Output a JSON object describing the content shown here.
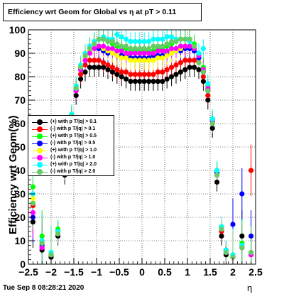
{
  "chart_data": {
    "type": "scatter",
    "title": "Efficiency wrt Geom for Global vs   η at pT > 0.11",
    "ylabel": "Efficiency wrt Geom(%)",
    "xlabel": "η",
    "xlim": [
      -2.5,
      2.5
    ],
    "ylim": [
      0,
      100
    ],
    "x_ticks": [
      "−2.5",
      "−2",
      "−1.5",
      "−1",
      "−0.5",
      "0",
      "0.5",
      "1",
      "1.5",
      "2",
      "2.5"
    ],
    "y_ticks": [
      "0",
      "10",
      "20",
      "30",
      "40",
      "50",
      "60",
      "70",
      "80",
      "90",
      "100"
    ],
    "grid": true,
    "legend_position": "left-middle",
    "series": [
      {
        "name": "(+) with p T/|q| > 0.1",
        "color": "#000000",
        "x": [
          -2.4,
          -2.2,
          -2.0,
          -1.85,
          -1.7,
          -1.55,
          -1.45,
          -1.35,
          -1.25,
          -1.15,
          -1.05,
          -0.95,
          -0.85,
          -0.75,
          -0.65,
          -0.55,
          -0.45,
          -0.35,
          -0.25,
          -0.15,
          -0.05,
          0.05,
          0.15,
          0.25,
          0.35,
          0.45,
          0.55,
          0.65,
          0.75,
          0.85,
          0.95,
          1.05,
          1.15,
          1.25,
          1.35,
          1.45,
          1.55,
          1.65,
          1.75,
          1.85,
          2.0,
          2.2,
          2.4
        ],
        "y": [
          18,
          6,
          3,
          12,
          38,
          60,
          72,
          79,
          82,
          84,
          84,
          84,
          84,
          83,
          82,
          81,
          80,
          79,
          78,
          78,
          78,
          78,
          78,
          78,
          78,
          78,
          79,
          80,
          81,
          82,
          83,
          84,
          84,
          83,
          78,
          70,
          58,
          35,
          12,
          4,
          3,
          12,
          4
        ]
      },
      {
        "name": "(-) with p T/|q| > 0.1",
        "color": "#ff0000",
        "x": [
          -2.4,
          -2.2,
          -2.0,
          -1.85,
          -1.7,
          -1.55,
          -1.45,
          -1.35,
          -1.25,
          -1.15,
          -1.05,
          -0.95,
          -0.85,
          -0.75,
          -0.65,
          -0.55,
          -0.45,
          -0.35,
          -0.25,
          -0.15,
          -0.05,
          0.05,
          0.15,
          0.25,
          0.35,
          0.45,
          0.55,
          0.65,
          0.75,
          0.85,
          0.95,
          1.05,
          1.15,
          1.25,
          1.35,
          1.45,
          1.55,
          1.65,
          1.75,
          1.85,
          2.0,
          2.2,
          2.4
        ],
        "y": [
          25,
          10,
          4,
          14,
          40,
          62,
          74,
          81,
          85,
          87,
          87,
          87,
          86,
          85,
          84,
          83,
          82,
          82,
          81,
          81,
          81,
          81,
          81,
          81,
          82,
          82,
          83,
          84,
          85,
          86,
          87,
          87,
          87,
          86,
          80,
          72,
          60,
          38,
          14,
          5,
          4,
          8,
          40
        ]
      },
      {
        "name": "(+) with p T/|q| > 0.5",
        "color": "#00ff00",
        "x": [
          -2.4,
          -2.2,
          -2.0,
          -1.85,
          -1.7,
          -1.55,
          -1.45,
          -1.35,
          -1.25,
          -1.15,
          -1.05,
          -0.95,
          -0.85,
          -0.75,
          -0.65,
          -0.55,
          -0.45,
          -0.35,
          -0.25,
          -0.15,
          -0.05,
          0.05,
          0.15,
          0.25,
          0.35,
          0.45,
          0.55,
          0.65,
          0.75,
          0.85,
          0.95,
          1.05,
          1.15,
          1.25,
          1.35,
          1.45,
          1.55,
          1.65,
          1.75,
          1.85,
          2.0,
          2.2,
          2.4
        ],
        "y": [
          33,
          12,
          5,
          15,
          42,
          64,
          76,
          84,
          89,
          93,
          95,
          96,
          96,
          95,
          94,
          93,
          92,
          92,
          91,
          91,
          91,
          91,
          91,
          91,
          92,
          92,
          93,
          94,
          95,
          96,
          96,
          96,
          94,
          90,
          84,
          76,
          62,
          40,
          16,
          6,
          4,
          9,
          5
        ]
      },
      {
        "name": "(-) with p T/|q| > 0.5",
        "color": "#0000ff",
        "x": [
          -2.4,
          -2.2,
          -2.0,
          -1.85,
          -1.7,
          -1.55,
          -1.45,
          -1.35,
          -1.25,
          -1.15,
          -1.05,
          -0.95,
          -0.85,
          -0.75,
          -0.65,
          -0.55,
          -0.45,
          -0.35,
          -0.25,
          -0.15,
          -0.05,
          0.05,
          0.15,
          0.25,
          0.35,
          0.45,
          0.55,
          0.65,
          0.75,
          0.85,
          0.95,
          1.05,
          1.15,
          1.25,
          1.35,
          1.45,
          1.55,
          1.65,
          1.75,
          1.85,
          2.0,
          2.2,
          2.4
        ],
        "y": [
          20,
          8,
          4,
          14,
          41,
          63,
          75,
          83,
          88,
          91,
          92,
          92,
          91,
          90,
          90,
          89,
          89,
          89,
          88,
          88,
          88,
          88,
          88,
          89,
          89,
          89,
          90,
          90,
          91,
          91,
          92,
          92,
          91,
          88,
          82,
          74,
          61,
          39,
          15,
          6,
          17,
          30,
          12
        ]
      },
      {
        "name": "(+) with p T/|q| > 1.0",
        "color": "#ffff00",
        "x": [
          -2.4,
          -2.2,
          -2.0,
          -1.85,
          -1.7,
          -1.55,
          -1.45,
          -1.35,
          -1.25,
          -1.15,
          -1.05,
          -0.95,
          -0.85,
          -0.75,
          -0.65,
          -0.55,
          -0.45,
          -0.35,
          -0.25,
          -0.15,
          -0.05,
          0.05,
          0.15,
          0.25,
          0.35,
          0.45,
          0.55,
          0.65,
          0.75,
          0.85,
          0.95,
          1.05,
          1.15,
          1.25,
          1.35,
          1.45,
          1.55,
          1.65,
          1.75,
          1.85,
          2.0,
          2.2,
          2.4
        ],
        "y": [
          28,
          9,
          4,
          13,
          40,
          63,
          75,
          84,
          88,
          91,
          92,
          93,
          92,
          91,
          90,
          89,
          88,
          88,
          87,
          87,
          87,
          87,
          87,
          87,
          88,
          88,
          89,
          90,
          91,
          92,
          93,
          93,
          92,
          89,
          83,
          75,
          61,
          38,
          15,
          5,
          4,
          7,
          4
        ]
      },
      {
        "name": "(-) with p T/|q| > 1.0",
        "color": "#ff00ff",
        "x": [
          -2.4,
          -2.2,
          -2.0,
          -1.85,
          -1.7,
          -1.55,
          -1.45,
          -1.35,
          -1.25,
          -1.15,
          -1.05,
          -0.95,
          -0.85,
          -0.75,
          -0.65,
          -0.55,
          -0.45,
          -0.35,
          -0.25,
          -0.15,
          -0.05,
          0.05,
          0.15,
          0.25,
          0.35,
          0.45,
          0.55,
          0.65,
          0.75,
          0.85,
          0.95,
          1.05,
          1.15,
          1.25,
          1.35,
          1.45,
          1.55,
          1.65,
          1.75,
          1.85,
          2.0,
          2.2,
          2.4
        ],
        "y": [
          22,
          7,
          4,
          13,
          40,
          62,
          74,
          83,
          87,
          90,
          92,
          93,
          93,
          92,
          92,
          91,
          91,
          90,
          90,
          90,
          90,
          90,
          90,
          90,
          91,
          91,
          91,
          92,
          92,
          93,
          93,
          93,
          92,
          89,
          83,
          75,
          61,
          38,
          15,
          5,
          3,
          7,
          4
        ]
      },
      {
        "name": "(+) with p T/|q| > 2.0",
        "color": "#00ffff",
        "x": [
          -2.4,
          -2.2,
          -2.0,
          -1.85,
          -1.7,
          -1.55,
          -1.45,
          -1.35,
          -1.25,
          -1.15,
          -1.05,
          -0.95,
          -0.85,
          -0.75,
          -0.65,
          -0.55,
          -0.45,
          -0.35,
          -0.25,
          -0.15,
          -0.05,
          0.05,
          0.15,
          0.25,
          0.35,
          0.45,
          0.55,
          0.65,
          0.75,
          0.85,
          0.95,
          1.05,
          1.15,
          1.25,
          1.35,
          1.45,
          1.55,
          1.65,
          1.75,
          1.85,
          2.0,
          2.2,
          2.4
        ],
        "y": [
          30,
          10,
          5,
          14,
          41,
          64,
          76,
          85,
          90,
          93,
          95,
          96,
          97,
          96,
          96,
          98,
          97,
          96,
          95,
          95,
          95,
          95,
          95,
          96,
          96,
          96,
          97,
          97,
          96,
          96,
          96,
          95,
          93,
          90,
          92,
          77,
          62,
          40,
          16,
          6,
          4,
          8,
          5
        ]
      },
      {
        "name": "(-) with p T/|q| > 2.0",
        "color": "#66cc66",
        "x": [
          -2.4,
          -2.2,
          -2.0,
          -1.85,
          -1.7,
          -1.55,
          -1.45,
          -1.35,
          -1.25,
          -1.15,
          -1.05,
          -0.95,
          -0.85,
          -0.75,
          -0.65,
          -0.55,
          -0.45,
          -0.35,
          -0.25,
          -0.15,
          -0.05,
          0.05,
          0.15,
          0.25,
          0.35,
          0.45,
          0.55,
          0.65,
          0.75,
          0.85,
          0.95,
          1.05,
          1.15,
          1.25,
          1.35,
          1.45,
          1.55,
          1.65,
          1.75,
          1.85,
          2.0,
          2.2,
          2.4
        ],
        "y": [
          26,
          9,
          4,
          13,
          40,
          63,
          75,
          84,
          89,
          92,
          94,
          96,
          96,
          95,
          95,
          94,
          93,
          93,
          92,
          92,
          92,
          92,
          92,
          93,
          93,
          93,
          94,
          95,
          95,
          96,
          96,
          96,
          93,
          86,
          82,
          74,
          60,
          38,
          15,
          5,
          3,
          7,
          5
        ]
      }
    ]
  },
  "footer": {
    "timestamp": "Tue Sep  8 08:28:21 2020"
  }
}
